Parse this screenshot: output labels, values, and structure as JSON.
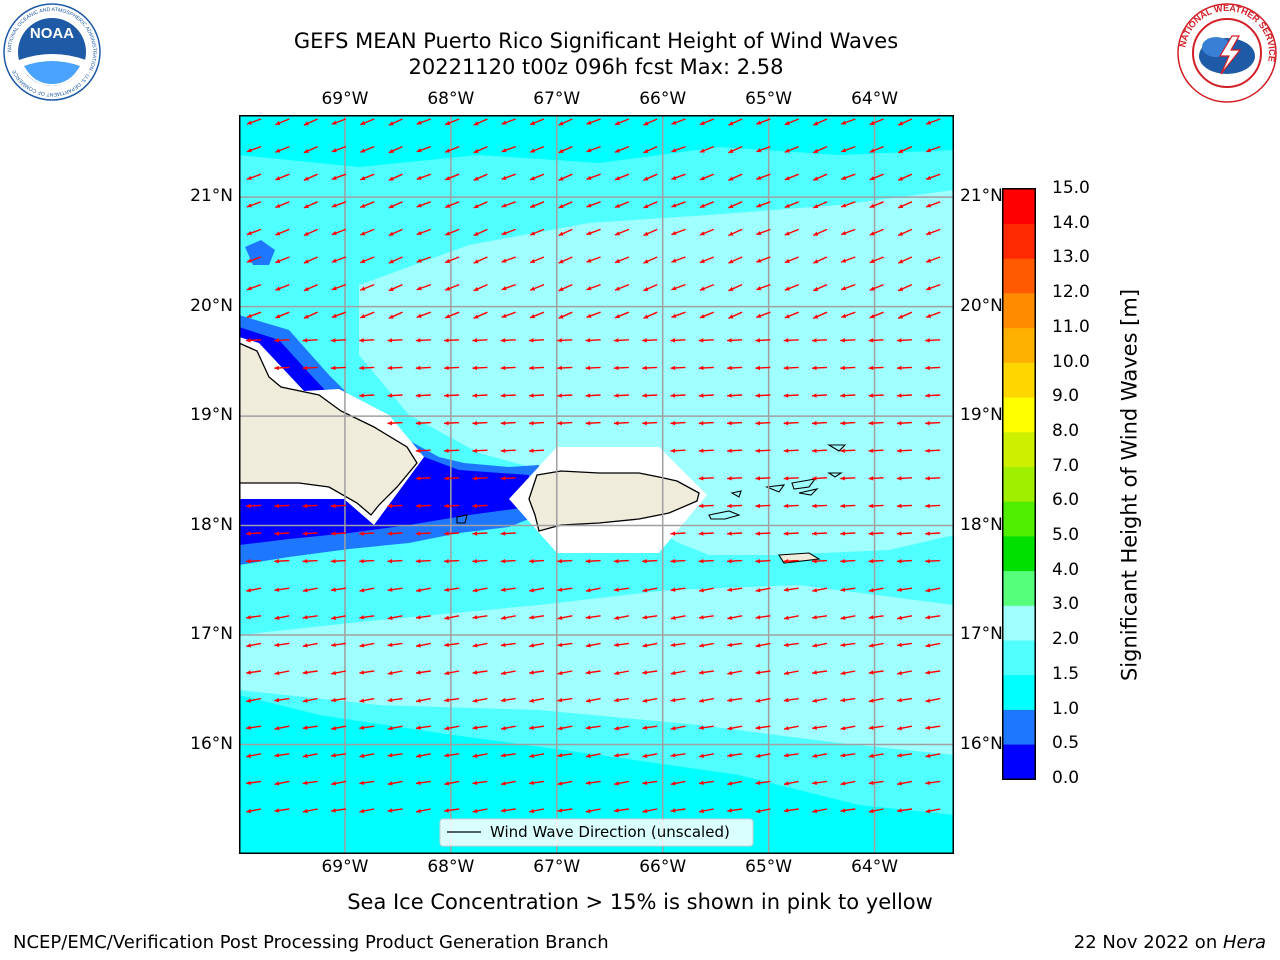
{
  "header": {
    "title_line1": "GEFS MEAN Puerto Rico Significant Height of Wind Waves",
    "title_line2": "20221120 t00z 096h fcst   Max: 2.58"
  },
  "logos": {
    "left": {
      "name": "noaa-logo",
      "text": "NOAA",
      "ring_text": "NATIONAL OCEANIC AND ATMOSPHERIC ADMINISTRATION · U.S. DEPARTMENT OF COMMERCE",
      "color": "#1f5aa6"
    },
    "right": {
      "name": "nws-logo",
      "ring_text": "NATIONAL WEATHER SERVICE",
      "color": "#d21f26"
    }
  },
  "map": {
    "lon_ticks": [
      "69°W",
      "68°W",
      "67°W",
      "66°W",
      "65°W",
      "64°W"
    ],
    "lon_values": [
      -69,
      -68,
      -67,
      -66,
      -65,
      -64
    ],
    "lat_ticks": [
      "21°N",
      "20°N",
      "19°N",
      "18°N",
      "17°N",
      "16°N"
    ],
    "lat_values": [
      21,
      20,
      19,
      18,
      17,
      16
    ],
    "lon_range": [
      -70.0,
      -63.25
    ],
    "lat_range": [
      15.0,
      21.75
    ],
    "gridlines": true,
    "arrow_color": "#ff0000",
    "legend_label": "Wind Wave Direction (unscaled)"
  },
  "colorbar": {
    "label": "Significant Height of Wind Waves [m]",
    "bounds": [
      "0.0",
      "0.5",
      "1.0",
      "1.5",
      "2.0",
      "3.0",
      "4.0",
      "5.0",
      "6.0",
      "7.0",
      "8.0",
      "9.0",
      "10.0",
      "11.0",
      "12.0",
      "13.0",
      "14.0",
      "15.0"
    ],
    "colors": [
      "#0000ff",
      "#1e78ff",
      "#00ffff",
      "#50ffff",
      "#a0ffff",
      "#55ff7a",
      "#00e000",
      "#50ee00",
      "#a0ee00",
      "#ccf000",
      "#ffff00",
      "#ffd700",
      "#ffb000",
      "#ff8c00",
      "#ff5a00",
      "#ff2800",
      "#ff0000"
    ]
  },
  "caption": "Sea Ice Concentration > 15% is shown in pink to yellow",
  "footer": {
    "left": "NCEP/EMC/Verification Post Processing Product Generation Branch",
    "date": "22 Nov 2022 on ",
    "machine": "Hera"
  }
}
